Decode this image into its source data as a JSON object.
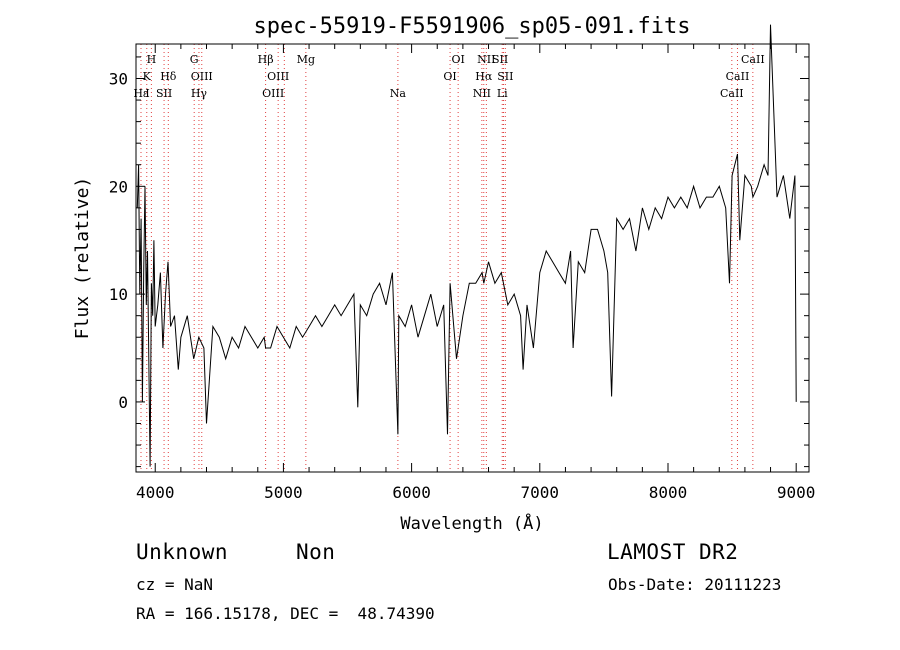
{
  "chart_data": {
    "type": "line",
    "title": "spec-55919-F5591906_sp05-091.fits",
    "xlabel": "Wavelength (Å)",
    "ylabel": "Flux (relative)",
    "xlim": [
      3850,
      9100
    ],
    "ylim": [
      -6.5,
      33.2
    ],
    "xticks": [
      4000,
      5000,
      6000,
      7000,
      8000,
      9000
    ],
    "yticks": [
      0,
      10,
      20,
      30
    ],
    "series": [
      {
        "x": [
          3860,
          3870,
          3880,
          3890,
          3900,
          3910,
          3920,
          3930,
          3940,
          3950,
          3960,
          3970,
          3980,
          3990,
          4000,
          4020,
          4040,
          4060,
          4080,
          4100,
          4120,
          4150,
          4180,
          4200,
          4250,
          4300,
          4340,
          4380,
          4400,
          4450,
          4500,
          4550,
          4600,
          4650,
          4700,
          4750,
          4800,
          4850,
          4861,
          4900,
          4950,
          5000,
          5050,
          5100,
          5150,
          5200,
          5250,
          5300,
          5350,
          5400,
          5450,
          5500,
          5550,
          5580,
          5600,
          5650,
          5700,
          5750,
          5800,
          5850,
          5893,
          5900,
          5950,
          6000,
          6050,
          6100,
          6150,
          6200,
          6250,
          6280,
          6300,
          6350,
          6400,
          6450,
          6500,
          6550,
          6563,
          6600,
          6650,
          6700,
          6750,
          6800,
          6850,
          6870,
          6900,
          6950,
          7000,
          7050,
          7100,
          7150,
          7200,
          7240,
          7260,
          7300,
          7350,
          7400,
          7450,
          7500,
          7530,
          7560,
          7600,
          7650,
          7700,
          7750,
          7800,
          7850,
          7900,
          7950,
          8000,
          8050,
          8100,
          8150,
          8200,
          8250,
          8300,
          8350,
          8400,
          8450,
          8480,
          8500,
          8542,
          8560,
          8600,
          8650,
          8662,
          8700,
          8750,
          8780,
          8800,
          8850,
          8900,
          8950,
          8990,
          9000
        ],
        "y": [
          18,
          22,
          10,
          17,
          0,
          12,
          20,
          9,
          14,
          4,
          -6,
          11,
          8,
          15,
          7,
          9,
          12,
          5,
          10,
          13,
          7,
          8,
          3,
          6,
          8,
          4,
          6,
          5,
          -2,
          7,
          6,
          4,
          6,
          5,
          7,
          6,
          5,
          6,
          5,
          5,
          7,
          6,
          5,
          7,
          6,
          7,
          8,
          7,
          8,
          9,
          8,
          9,
          10,
          -0.5,
          9,
          8,
          10,
          11,
          9,
          12,
          -3,
          8,
          7,
          9,
          6,
          8,
          10,
          7,
          9,
          -3,
          11,
          4,
          8,
          11,
          11,
          12,
          11,
          13,
          11,
          12,
          9,
          10,
          8,
          3,
          9,
          5,
          12,
          14,
          13,
          12,
          11,
          14,
          5,
          13,
          12,
          16,
          16,
          14,
          12,
          0.5,
          17,
          16,
          17,
          14,
          18,
          16,
          18,
          17,
          19,
          18,
          19,
          18,
          20,
          18,
          19,
          19,
          20,
          18,
          11,
          21,
          23,
          15,
          21,
          20,
          19,
          20,
          22,
          21,
          35,
          19,
          21,
          17,
          21,
          0
        ]
      }
    ],
    "annotations": [
      {
        "label": "H",
        "x": 3970,
        "row": 1
      },
      {
        "label": "K",
        "x": 3934,
        "row": 2
      },
      {
        "label": "Hε",
        "x": 3889,
        "row": 3
      },
      {
        "label": "I",
        "x": 3940,
        "row": 3
      },
      {
        "label": "Hδ",
        "x": 4102,
        "row": 2
      },
      {
        "label": "SII",
        "x": 4069,
        "row": 3
      },
      {
        "label": "G",
        "x": 4304,
        "row": 1
      },
      {
        "label": "OIII",
        "x": 4363,
        "row": 2
      },
      {
        "label": "Hγ",
        "x": 4341,
        "row": 3
      },
      {
        "label": "Hβ",
        "x": 4861,
        "row": 1
      },
      {
        "label": "OIII",
        "x": 4959,
        "row": 2
      },
      {
        "label": "OIII",
        "x": 4920,
        "row": 3
      },
      {
        "label": "Mg",
        "x": 5175,
        "row": 1
      },
      {
        "label": "Na",
        "x": 5893,
        "row": 3
      },
      {
        "label": "OI",
        "x": 6363,
        "row": 1
      },
      {
        "label": "OI",
        "x": 6300,
        "row": 2
      },
      {
        "label": "NII",
        "x": 6583,
        "row": 1
      },
      {
        "label": "SII",
        "x": 6690,
        "row": 1
      },
      {
        "label": "Hα",
        "x": 6563,
        "row": 2
      },
      {
        "label": "SII",
        "x": 6731,
        "row": 2
      },
      {
        "label": "NII",
        "x": 6548,
        "row": 3
      },
      {
        "label": "Li",
        "x": 6707,
        "row": 3
      },
      {
        "label": "CaII",
        "x": 8662,
        "row": 1
      },
      {
        "label": "CaII",
        "x": 8542,
        "row": 2
      },
      {
        "label": "CaII",
        "x": 8498,
        "row": 3
      }
    ],
    "lines": [
      3889,
      3934,
      3970,
      4069,
      4102,
      4304,
      4341,
      4363,
      4861,
      4959,
      5007,
      5175,
      5893,
      6300,
      6363,
      6548,
      6563,
      6583,
      6707,
      6717,
      6731,
      8498,
      8542,
      8662
    ],
    "line_color": "#e04040"
  },
  "info": {
    "class": "Unknown",
    "subclass": "Non",
    "survey": "LAMOST DR2",
    "cz": "cz = NaN",
    "obs_date": "Obs-Date: 20111223",
    "radec": "RA = 166.15178, DEC =  48.74390"
  }
}
